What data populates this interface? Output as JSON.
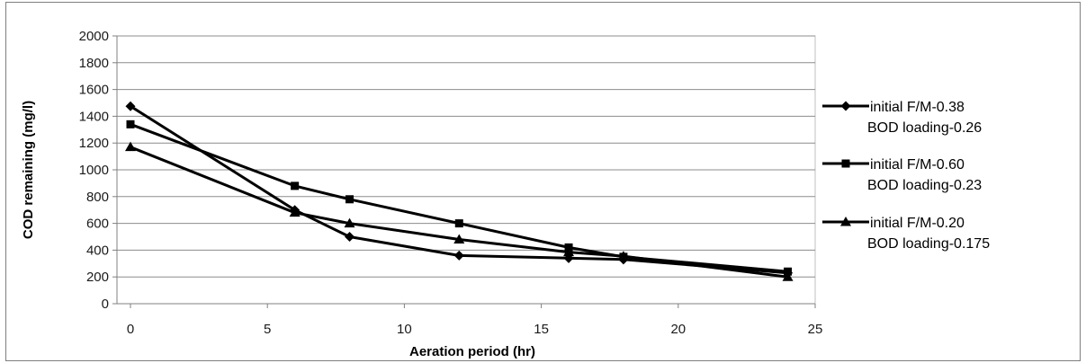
{
  "chart_data": {
    "type": "line",
    "title": "",
    "xlabel": "Aeration period (hr)",
    "ylabel": "COD remaining (mg/l)",
    "xlim": [
      0,
      25
    ],
    "ylim": [
      0,
      2000
    ],
    "x_ticks": [
      0,
      5,
      10,
      15,
      20,
      25
    ],
    "y_ticks": [
      0,
      200,
      400,
      600,
      800,
      1000,
      1200,
      1400,
      1600,
      1800,
      2000
    ],
    "grid": "horizontal",
    "legend_position": "right",
    "line_color": "#000000",
    "series": [
      {
        "name_line1": "initial F/M-0.38",
        "name_line2": "BOD loading-0.26",
        "marker": "diamond",
        "x": [
          0,
          6,
          8,
          12,
          16,
          18,
          24
        ],
        "y": [
          1475,
          700,
          500,
          360,
          340,
          330,
          230
        ]
      },
      {
        "name_line1": "initial F/M-0.60",
        "name_line2": "BOD loading-0.23",
        "marker": "square",
        "x": [
          0,
          6,
          8,
          12,
          16,
          18,
          24
        ],
        "y": [
          1340,
          880,
          780,
          600,
          420,
          350,
          240
        ]
      },
      {
        "name_line1": "initial F/M-0.20",
        "name_line2": "BOD loading-0.175",
        "marker": "triangle",
        "x": [
          0,
          6,
          8,
          12,
          16,
          18,
          24
        ],
        "y": [
          1170,
          680,
          600,
          480,
          385,
          355,
          200
        ]
      }
    ]
  }
}
